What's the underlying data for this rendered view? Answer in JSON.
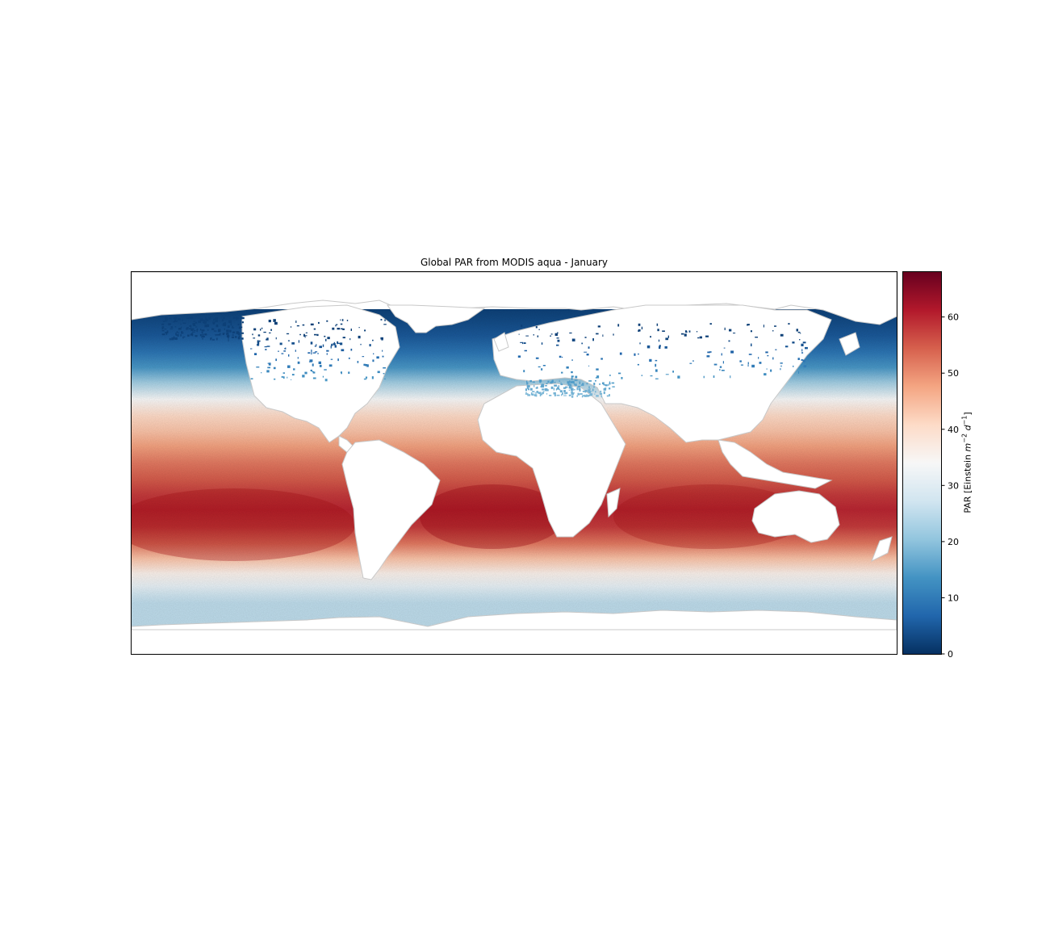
{
  "chart_data": {
    "type": "heatmap",
    "title": "Global PAR from MODIS aqua - January",
    "projection": "equirectangular",
    "colormap": "RdBu_r",
    "colors": {
      "low": "#053061",
      "mid": "#f7f7f7",
      "high": "#67001f",
      "land": "#ffffff",
      "coastline": "#c8c8c8"
    },
    "colorbar": {
      "label_prefix": "PAR [Einstein ",
      "label_unit_m": "m",
      "label_exp_m": "−2",
      "label_unit_d": "d",
      "label_exp_d": "−1",
      "label_suffix": "]",
      "range": [
        0,
        68
      ],
      "ticks": [
        0,
        10,
        20,
        30,
        40,
        50,
        60
      ]
    },
    "latitude_profile": {
      "lat": [
        75,
        68,
        60,
        52,
        45,
        38,
        30,
        22,
        15,
        8,
        0,
        -8,
        -15,
        -22,
        -30,
        -38,
        -45,
        -52,
        -58,
        -62,
        -66
      ],
      "par": [
        2,
        3,
        5,
        9,
        14,
        22,
        34,
        41,
        44,
        48,
        52,
        55,
        58,
        60,
        58,
        52,
        44,
        36,
        31,
        27,
        25
      ]
    }
  }
}
